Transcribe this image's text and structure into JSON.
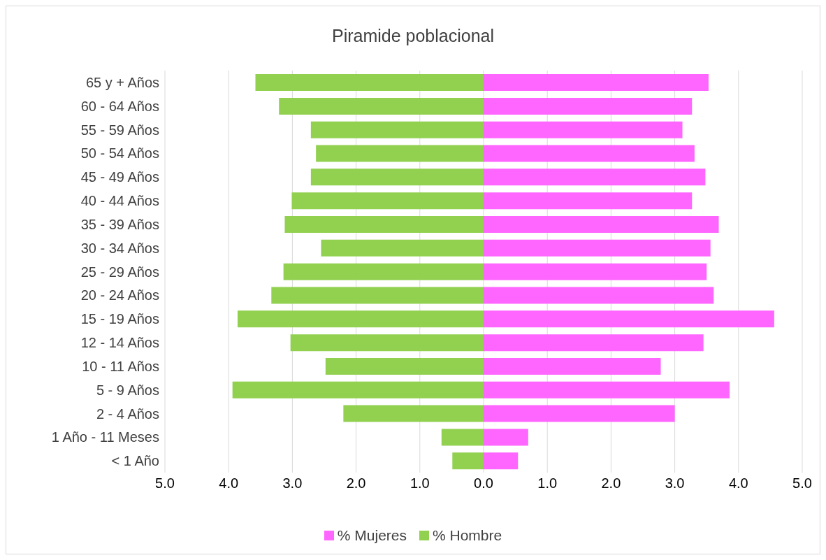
{
  "chart_data": {
    "type": "bar",
    "orientation": "horizontal",
    "stacked": true,
    "title": "Piramide poblacional",
    "categories": [
      "65 y + Años",
      "60 - 64 Años",
      "55 - 59 Años",
      "50 - 54 Años",
      "45 - 49 Años",
      "40 - 44 Años",
      "35 - 39 Años",
      "30 - 34 Años",
      "25 - 29 Años",
      "20 - 24 Años",
      "15 - 19 Años",
      "12 - 14 Años",
      "10 - 11 Años",
      "5 - 9 Años",
      "2 - 4 Años",
      "1 Año - 11 Meses",
      "< 1 Año"
    ],
    "series": [
      {
        "name": "% Mujeres",
        "color": "#ff66ff",
        "values": [
          3.53,
          3.27,
          3.12,
          3.31,
          3.48,
          3.27,
          3.69,
          3.56,
          3.5,
          3.61,
          4.56,
          3.45,
          2.78,
          3.86,
          3.0,
          0.7,
          0.54
        ]
      },
      {
        "name": "% Hombre",
        "color": "#92d050",
        "values": [
          -3.58,
          -3.21,
          -2.71,
          -2.63,
          -2.71,
          -3.01,
          -3.12,
          -2.55,
          -3.14,
          -3.33,
          -3.86,
          -3.03,
          -2.48,
          -3.94,
          -2.2,
          -0.66,
          -0.49
        ]
      }
    ],
    "xlim": [
      -5,
      5
    ],
    "xticks": [
      {
        "value": -5,
        "label": "5.0"
      },
      {
        "value": -4,
        "label": "4.0"
      },
      {
        "value": -3,
        "label": "3.0"
      },
      {
        "value": -2,
        "label": "2.0"
      },
      {
        "value": -1,
        "label": "1.0"
      },
      {
        "value": 0,
        "label": "0.0"
      },
      {
        "value": 1,
        "label": "1.0"
      },
      {
        "value": 2,
        "label": "2.0"
      },
      {
        "value": 3,
        "label": "3.0"
      },
      {
        "value": 4,
        "label": "4.0"
      },
      {
        "value": 5,
        "label": "5.0"
      }
    ],
    "grid": "x",
    "legend": "bottom"
  }
}
